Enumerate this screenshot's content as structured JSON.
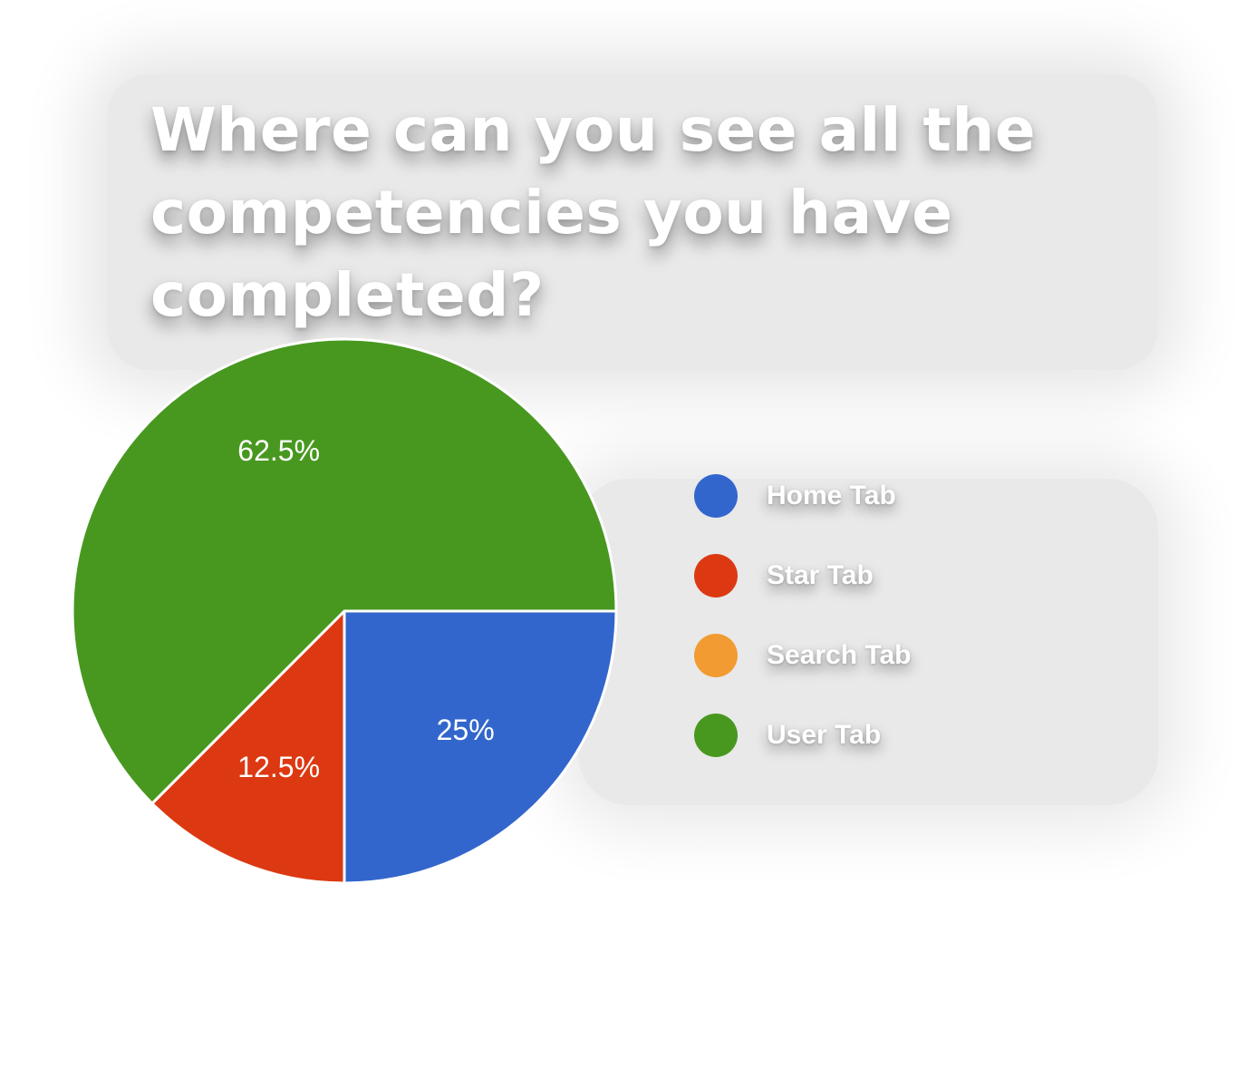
{
  "chart_data": {
    "type": "pie",
    "title": "Where can you see all the competencies you have completed?",
    "categories": [
      "Home Tab",
      "Star Tab",
      "Search Tab",
      "User Tab"
    ],
    "values": [
      25,
      12.5,
      0,
      62.5
    ],
    "value_labels": [
      "25%",
      "12.5%",
      "",
      "62.5%"
    ],
    "colors": [
      "#3366cc",
      "#dc3912",
      "#f29b32",
      "#489820"
    ],
    "legend_position": "right"
  }
}
